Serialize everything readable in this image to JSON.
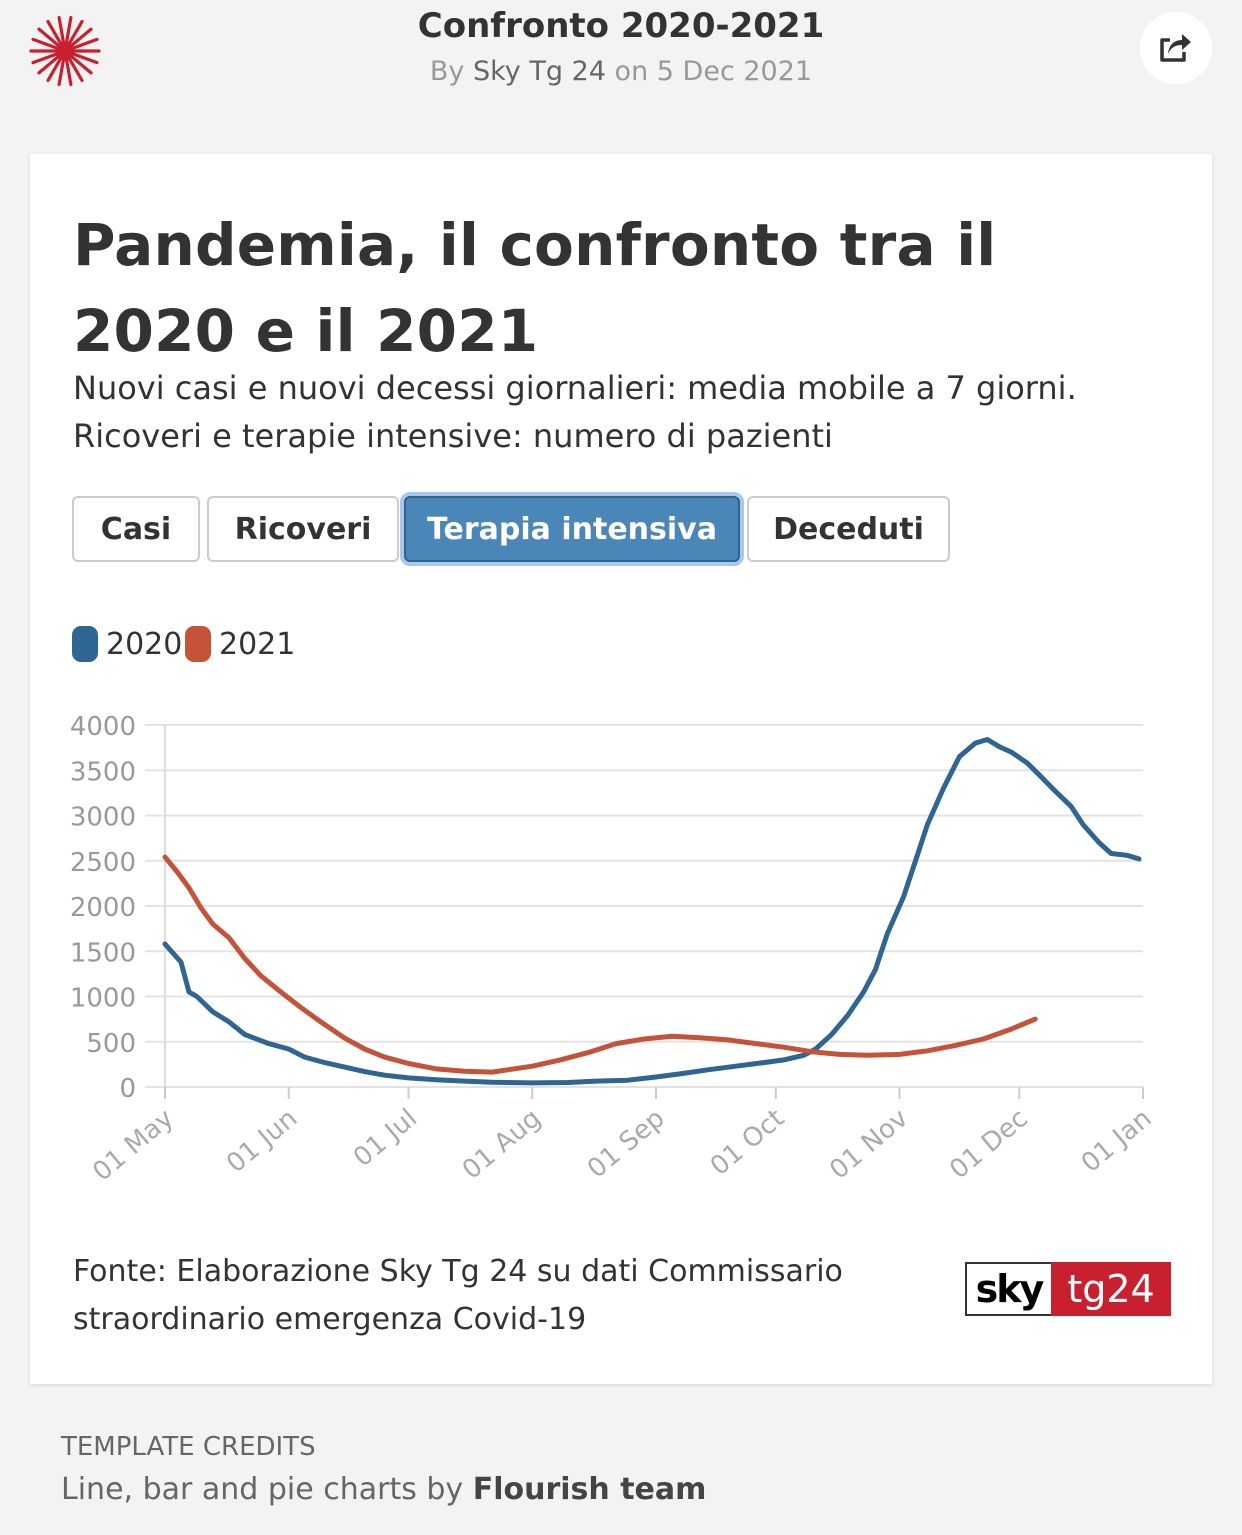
{
  "header": {
    "title": "Confronto 2020-2021",
    "byline_prefix": "By",
    "author": "Sky Tg 24",
    "date_prefix": "on",
    "date": "5 Dec 2021",
    "logo_icon": "flourish-burst-icon",
    "share_icon": "share-icon"
  },
  "card": {
    "headline": "Pandemia, il confronto tra il 2020 e il 2021",
    "subtitle": "Nuovi casi e nuovi decessi giornalieri: media mobile a 7 giorni. Ricoveri e terapie intensive: numero di pazienti",
    "tabs": [
      {
        "label": "Casi",
        "active": false
      },
      {
        "label": "Ricoveri",
        "active": false
      },
      {
        "label": "Terapia intensiva",
        "active": true
      },
      {
        "label": "Deceduti",
        "active": false
      }
    ],
    "legend": [
      {
        "label": "2020",
        "color": "#2f6593"
      },
      {
        "label": "2021",
        "color": "#c4533a"
      }
    ],
    "source": "Fonte: Elaborazione Sky Tg 24 su dati Commissario straordinario emergenza Covid-19",
    "brand": {
      "left": "sky",
      "right": "tg24"
    }
  },
  "footer": {
    "label": "TEMPLATE CREDITS",
    "text_prefix": "Line, bar and pie charts by",
    "text_bold": "Flourish team"
  },
  "chart_data": {
    "type": "line",
    "x_ticks": [
      "01 May",
      "01 Jun",
      "01 Jul",
      "01 Aug",
      "01 Sep",
      "01 Oct",
      "01 Nov",
      "01 Dec",
      "01 Jan"
    ],
    "y_ticks": [
      0,
      500,
      1000,
      1500,
      2000,
      2500,
      3000,
      3500,
      4000
    ],
    "ylim": [
      0,
      4000
    ],
    "xlim": [
      "2020-05-01",
      "2021-01-01"
    ],
    "grid": true,
    "legend_position": "top-left",
    "series": [
      {
        "name": "2020",
        "color": "#2f6593",
        "points": [
          [
            "2020-05-01",
            1580
          ],
          [
            "2020-05-03",
            1480
          ],
          [
            "2020-05-05",
            1380
          ],
          [
            "2020-05-07",
            1050
          ],
          [
            "2020-05-09",
            1000
          ],
          [
            "2020-05-13",
            830
          ],
          [
            "2020-05-17",
            720
          ],
          [
            "2020-05-21",
            580
          ],
          [
            "2020-05-27",
            480
          ],
          [
            "2020-06-01",
            420
          ],
          [
            "2020-06-05",
            330
          ],
          [
            "2020-06-10",
            270
          ],
          [
            "2020-06-15",
            220
          ],
          [
            "2020-06-20",
            170
          ],
          [
            "2020-06-25",
            130
          ],
          [
            "2020-07-01",
            100
          ],
          [
            "2020-07-08",
            80
          ],
          [
            "2020-07-15",
            65
          ],
          [
            "2020-07-22",
            52
          ],
          [
            "2020-08-01",
            45
          ],
          [
            "2020-08-10",
            50
          ],
          [
            "2020-08-17",
            65
          ],
          [
            "2020-08-25",
            75
          ],
          [
            "2020-09-01",
            110
          ],
          [
            "2020-09-07",
            145
          ],
          [
            "2020-09-14",
            190
          ],
          [
            "2020-09-21",
            230
          ],
          [
            "2020-09-28",
            270
          ],
          [
            "2020-10-03",
            300
          ],
          [
            "2020-10-08",
            350
          ],
          [
            "2020-10-11",
            420
          ],
          [
            "2020-10-15",
            580
          ],
          [
            "2020-10-19",
            790
          ],
          [
            "2020-10-23",
            1050
          ],
          [
            "2020-10-26",
            1300
          ],
          [
            "2020-10-29",
            1700
          ],
          [
            "2020-11-02",
            2100
          ],
          [
            "2020-11-05",
            2500
          ],
          [
            "2020-11-08",
            2900
          ],
          [
            "2020-11-12",
            3300
          ],
          [
            "2020-11-16",
            3650
          ],
          [
            "2020-11-20",
            3800
          ],
          [
            "2020-11-23",
            3840
          ],
          [
            "2020-11-26",
            3760
          ],
          [
            "2020-11-29",
            3700
          ],
          [
            "2020-12-03",
            3580
          ],
          [
            "2020-12-06",
            3450
          ],
          [
            "2020-12-10",
            3270
          ],
          [
            "2020-12-14",
            3100
          ],
          [
            "2020-12-17",
            2900
          ],
          [
            "2020-12-21",
            2700
          ],
          [
            "2020-12-24",
            2580
          ],
          [
            "2020-12-28",
            2560
          ],
          [
            "2020-12-31",
            2520
          ]
        ]
      },
      {
        "name": "2021",
        "color": "#c4533a",
        "points": [
          [
            "2021-05-01",
            2540
          ],
          [
            "2021-05-04",
            2380
          ],
          [
            "2021-05-07",
            2200
          ],
          [
            "2021-05-10",
            1980
          ],
          [
            "2021-05-13",
            1800
          ],
          [
            "2021-05-17",
            1650
          ],
          [
            "2021-05-21",
            1420
          ],
          [
            "2021-05-25",
            1230
          ],
          [
            "2021-05-30",
            1050
          ],
          [
            "2021-06-04",
            880
          ],
          [
            "2021-06-09",
            720
          ],
          [
            "2021-06-15",
            540
          ],
          [
            "2021-06-20",
            420
          ],
          [
            "2021-06-25",
            330
          ],
          [
            "2021-07-01",
            260
          ],
          [
            "2021-07-08",
            200
          ],
          [
            "2021-07-15",
            175
          ],
          [
            "2021-07-22",
            165
          ],
          [
            "2021-08-01",
            230
          ],
          [
            "2021-08-08",
            300
          ],
          [
            "2021-08-15",
            380
          ],
          [
            "2021-08-22",
            480
          ],
          [
            "2021-08-29",
            530
          ],
          [
            "2021-09-05",
            560
          ],
          [
            "2021-09-12",
            545
          ],
          [
            "2021-09-19",
            520
          ],
          [
            "2021-09-26",
            480
          ],
          [
            "2021-10-03",
            440
          ],
          [
            "2021-10-10",
            390
          ],
          [
            "2021-10-17",
            360
          ],
          [
            "2021-10-24",
            350
          ],
          [
            "2021-11-01",
            360
          ],
          [
            "2021-11-08",
            400
          ],
          [
            "2021-11-15",
            460
          ],
          [
            "2021-11-22",
            530
          ],
          [
            "2021-11-29",
            640
          ],
          [
            "2021-12-05",
            750
          ]
        ]
      }
    ]
  }
}
